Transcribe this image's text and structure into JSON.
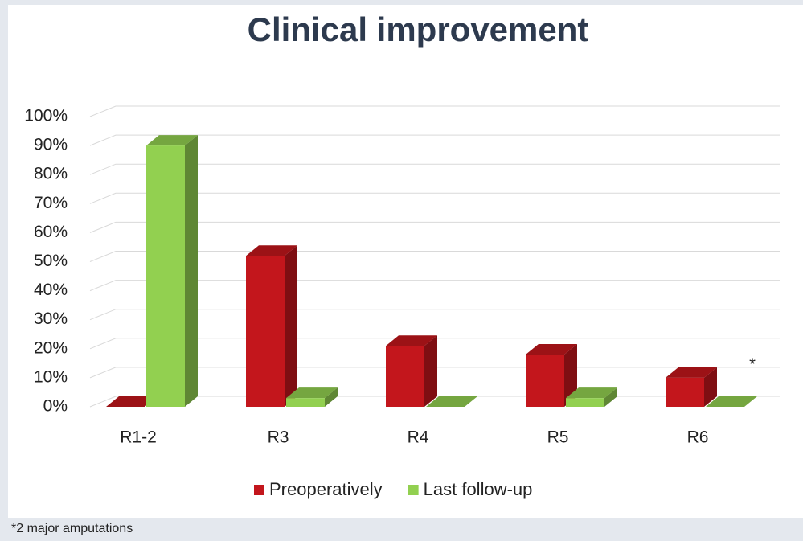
{
  "chart_data": {
    "type": "bar3d",
    "title": "Clinical improvement",
    "categories": [
      "R1-2",
      "R3",
      "R4",
      "R5",
      "R6"
    ],
    "series": [
      {
        "name": "Preoperatively",
        "color": "#c3161c",
        "values": [
          0,
          52,
          21,
          18,
          10
        ]
      },
      {
        "name": "Last follow-up",
        "color": "#92d050",
        "values": [
          90,
          3,
          0,
          3,
          0
        ]
      }
    ],
    "ylim": [
      0,
      100
    ],
    "yticks": [
      {
        "value": 0,
        "label": "0%"
      },
      {
        "value": 10,
        "label": "10%"
      },
      {
        "value": 20,
        "label": "20%"
      },
      {
        "value": 30,
        "label": "30%"
      },
      {
        "value": 40,
        "label": "40%"
      },
      {
        "value": 50,
        "label": "50%"
      },
      {
        "value": 60,
        "label": "60%"
      },
      {
        "value": 70,
        "label": "70%"
      },
      {
        "value": 80,
        "label": "80%"
      },
      {
        "value": 90,
        "label": "90%"
      },
      {
        "value": 100,
        "label": "100%"
      }
    ],
    "grid": true,
    "legend": "bottom",
    "annotation": "*",
    "footnote": "*2 major amputations"
  }
}
